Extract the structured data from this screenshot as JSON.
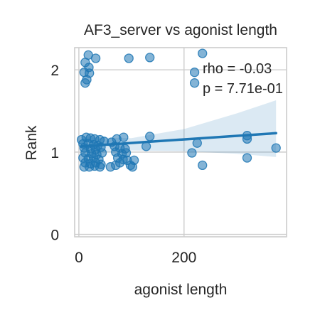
{
  "chart_data": {
    "type": "scatter",
    "title": "AF3_server vs agonist length",
    "xlabel": "agonist length",
    "ylabel": "Rank",
    "xlim": [
      -8,
      395
    ],
    "ylim": [
      -0.03,
      2.27
    ],
    "xticks": [
      {
        "value": 0,
        "label": "0"
      },
      {
        "value": 200,
        "label": "200"
      }
    ],
    "yticks": [
      {
        "value": 0,
        "label": "0"
      },
      {
        "value": 1,
        "label": "1"
      },
      {
        "value": 2,
        "label": "2"
      }
    ],
    "grid": true,
    "colors": {
      "point": "#1f77b4",
      "line": "#1f77b4",
      "band": "#1f77b4",
      "grid": "#cccccc",
      "frame": "#cccccc"
    },
    "annotation": [
      "rho = -0.03",
      "p = 7.71e-01"
    ],
    "regression": {
      "x": [
        5,
        375
      ],
      "y": [
        1.07,
        1.23
      ]
    },
    "confidence_band": {
      "x": [
        5,
        100,
        200,
        300,
        375
      ],
      "lower": [
        0.98,
        1.02,
        1.01,
        0.98,
        0.94
      ],
      "upper": [
        1.18,
        1.17,
        1.28,
        1.47,
        1.63
      ]
    },
    "points": [
      {
        "x": 18,
        "y": 2.18
      },
      {
        "x": 32,
        "y": 2.14
      },
      {
        "x": 12,
        "y": 2.09
      },
      {
        "x": 19,
        "y": 2.03
      },
      {
        "x": 10,
        "y": 1.97
      },
      {
        "x": 20,
        "y": 1.96
      },
      {
        "x": 15,
        "y": 1.88
      },
      {
        "x": 12,
        "y": 1.84
      },
      {
        "x": 95,
        "y": 2.14
      },
      {
        "x": 135,
        "y": 2.15
      },
      {
        "x": 235,
        "y": 2.2
      },
      {
        "x": 220,
        "y": 1.97
      },
      {
        "x": 220,
        "y": 1.84
      },
      {
        "x": 5,
        "y": 1.15
      },
      {
        "x": 14,
        "y": 1.18
      },
      {
        "x": 22,
        "y": 1.17
      },
      {
        "x": 30,
        "y": 1.16
      },
      {
        "x": 40,
        "y": 1.15
      },
      {
        "x": 48,
        "y": 1.13
      },
      {
        "x": 62,
        "y": 1.12
      },
      {
        "x": 72,
        "y": 1.16
      },
      {
        "x": 85,
        "y": 1.18
      },
      {
        "x": 8,
        "y": 1.1
      },
      {
        "x": 18,
        "y": 1.1
      },
      {
        "x": 28,
        "y": 1.09
      },
      {
        "x": 36,
        "y": 1.08
      },
      {
        "x": 10,
        "y": 1.05
      },
      {
        "x": 22,
        "y": 1.04
      },
      {
        "x": 32,
        "y": 1.03
      },
      {
        "x": 42,
        "y": 1.06
      },
      {
        "x": 68,
        "y": 1.07
      },
      {
        "x": 78,
        "y": 1.05
      },
      {
        "x": 88,
        "y": 1.04
      },
      {
        "x": 12,
        "y": 0.99
      },
      {
        "x": 24,
        "y": 0.98
      },
      {
        "x": 34,
        "y": 0.97
      },
      {
        "x": 44,
        "y": 0.99
      },
      {
        "x": 70,
        "y": 1.0
      },
      {
        "x": 82,
        "y": 0.98
      },
      {
        "x": 90,
        "y": 0.99
      },
      {
        "x": 8,
        "y": 0.93
      },
      {
        "x": 18,
        "y": 0.92
      },
      {
        "x": 28,
        "y": 0.93
      },
      {
        "x": 38,
        "y": 0.91
      },
      {
        "x": 74,
        "y": 0.93
      },
      {
        "x": 84,
        "y": 0.91
      },
      {
        "x": 12,
        "y": 0.87
      },
      {
        "x": 22,
        "y": 0.86
      },
      {
        "x": 32,
        "y": 0.87
      },
      {
        "x": 42,
        "y": 0.85
      },
      {
        "x": 78,
        "y": 0.87
      },
      {
        "x": 10,
        "y": 0.82
      },
      {
        "x": 20,
        "y": 0.82
      },
      {
        "x": 30,
        "y": 0.83
      },
      {
        "x": 40,
        "y": 0.82
      },
      {
        "x": 60,
        "y": 0.82
      },
      {
        "x": 70,
        "y": 0.84
      },
      {
        "x": 98,
        "y": 0.84
      },
      {
        "x": 102,
        "y": 0.82
      },
      {
        "x": 105,
        "y": 0.9
      },
      {
        "x": 92,
        "y": 0.9
      },
      {
        "x": 128,
        "y": 1.07
      },
      {
        "x": 135,
        "y": 1.19
      },
      {
        "x": 215,
        "y": 0.99
      },
      {
        "x": 225,
        "y": 1.11
      },
      {
        "x": 235,
        "y": 0.84
      },
      {
        "x": 320,
        "y": 1.2
      },
      {
        "x": 320,
        "y": 1.16
      },
      {
        "x": 320,
        "y": 0.93
      },
      {
        "x": 375,
        "y": 1.05
      }
    ]
  }
}
